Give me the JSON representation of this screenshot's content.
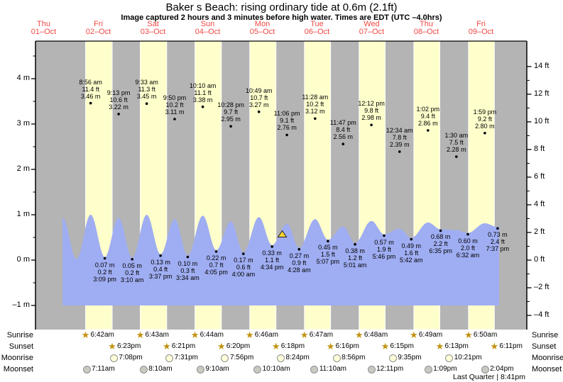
{
  "title": "Baker s Beach: rising  ordinary tide at 0.6m (2.1ft)",
  "subtitle": "Image captured 2 hours and 3 minutes before high water. Times are EDT (UTC –4.0hrs)",
  "colors": {
    "day_band": "#ffffcc",
    "night_band": "#b4b4b4",
    "tide_fill": "#9fadf2",
    "date_red": "#f04843",
    "marker_yellow": "#ffd633",
    "sun_star": "#c2920e",
    "moonrise_fill": "#ffffd9",
    "moonset_fill": "#c9c9c2"
  },
  "days": [
    {
      "name": "Thu",
      "date": "01–Oct"
    },
    {
      "name": "Fri",
      "date": "02–Oct"
    },
    {
      "name": "Sat",
      "date": "03–Oct"
    },
    {
      "name": "Sun",
      "date": "04–Oct"
    },
    {
      "name": "Mon",
      "date": "05–Oct"
    },
    {
      "name": "Tue",
      "date": "06–Oct"
    },
    {
      "name": "Wed",
      "date": "07–Oct"
    },
    {
      "name": "Thu",
      "date": "08–Oct"
    },
    {
      "name": "Fri",
      "date": "09–Oct"
    }
  ],
  "chart_data": {
    "type": "area",
    "title": "Baker s Beach: rising  ordinary tide at 0.6m (2.1ft)",
    "x_axis": {
      "label": "date",
      "days_shown": [
        "01-Oct",
        "02-Oct",
        "03-Oct",
        "04-Oct",
        "05-Oct",
        "06-Oct",
        "07-Oct",
        "08-Oct",
        "09-Oct"
      ]
    },
    "y_axis_left": {
      "unit": "m",
      "ticks": [
        {
          "v": 4,
          "label": "4 m"
        },
        {
          "v": 3,
          "label": "3 m"
        },
        {
          "v": 2,
          "label": "2 m"
        },
        {
          "v": 1,
          "label": "1 m"
        },
        {
          "v": 0,
          "label": "0 m"
        },
        {
          "v": -1,
          "label": "–1 m"
        }
      ]
    },
    "y_axis_right": {
      "unit": "ft",
      "ticks": [
        {
          "v": 14,
          "label": "14 ft"
        },
        {
          "v": 12,
          "label": "12 ft"
        },
        {
          "v": 10,
          "label": "10 ft"
        },
        {
          "v": 8,
          "label": "8 ft"
        },
        {
          "v": 6,
          "label": "6 ft"
        },
        {
          "v": 4,
          "label": "4 ft"
        },
        {
          "v": 2,
          "label": "2 ft"
        },
        {
          "v": 0,
          "label": "0 ft"
        },
        {
          "v": -2,
          "label": "–2 ft"
        },
        {
          "v": -4,
          "label": "–4 ft"
        }
      ]
    },
    "high_tides": [
      {
        "date": "02-Oct",
        "time": "8:56 am",
        "ft": "11.4 ft",
        "m": "3.46 m",
        "value_m": 3.46
      },
      {
        "date": "02-Oct",
        "time": "9:13 pm",
        "ft": "10.6 ft",
        "m": "3.22 m",
        "value_m": 3.22
      },
      {
        "date": "03-Oct",
        "time": "9:33 am",
        "ft": "11.3 ft",
        "m": "3.45 m",
        "value_m": 3.45
      },
      {
        "date": "03-Oct",
        "time": "9:50 pm",
        "ft": "10.2 ft",
        "m": "3.11 m",
        "value_m": 3.11
      },
      {
        "date": "04-Oct",
        "time": "10:10 am",
        "ft": "11.1 ft",
        "m": "3.38 m",
        "value_m": 3.38
      },
      {
        "date": "04-Oct",
        "time": "10:28 pm",
        "ft": "9.7 ft",
        "m": "2.95 m",
        "value_m": 2.95
      },
      {
        "date": "05-Oct",
        "time": "10:49 am",
        "ft": "10.7 ft",
        "m": "3.27 m",
        "value_m": 3.27
      },
      {
        "date": "05-Oct",
        "time": "11:06 pm",
        "ft": "9.1 ft",
        "m": "2.76 m",
        "value_m": 2.76
      },
      {
        "date": "06-Oct",
        "time": "11:28 am",
        "ft": "10.2 ft",
        "m": "3.12 m",
        "value_m": 3.12
      },
      {
        "date": "06-Oct",
        "time": "11:47 pm",
        "ft": "8.4 ft",
        "m": "2.56 m",
        "value_m": 2.56
      },
      {
        "date": "07-Oct",
        "time": "12:12 pm",
        "ft": "9.8 ft",
        "m": "2.98 m",
        "value_m": 2.98
      },
      {
        "date": "08-Oct",
        "time": "12:34 am",
        "ft": "7.8 ft",
        "m": "2.39 m",
        "value_m": 2.39
      },
      {
        "date": "08-Oct",
        "time": "1:02 pm",
        "ft": "9.4 ft",
        "m": "2.86 m",
        "value_m": 2.86
      },
      {
        "date": "09-Oct",
        "time": "1:30 am",
        "ft": "7.5 ft",
        "m": "2.28 m",
        "value_m": 2.28
      },
      {
        "date": "09-Oct",
        "time": "1:59 pm",
        "ft": "9.2 ft",
        "m": "2.80 m",
        "value_m": 2.8
      }
    ],
    "low_tides": [
      {
        "date": "02-Oct",
        "time": "3:09 pm",
        "ft": "0.2 ft",
        "m": "0.07 m",
        "value_m": 0.07
      },
      {
        "date": "03-Oct",
        "time": "3:10 am",
        "ft": "0.2 ft",
        "m": "0.05 m",
        "value_m": 0.05
      },
      {
        "date": "03-Oct",
        "time": "3:37 pm",
        "ft": "0.4 ft",
        "m": "0.13 m",
        "value_m": 0.13
      },
      {
        "date": "04-Oct",
        "time": "3:34 am",
        "ft": "0.3 ft",
        "m": "0.10 m",
        "value_m": 0.1
      },
      {
        "date": "04-Oct",
        "time": "4:05 pm",
        "ft": "0.7 ft",
        "m": "0.22 m",
        "value_m": 0.22
      },
      {
        "date": "05-Oct",
        "time": "4:00 am",
        "ft": "0.6 ft",
        "m": "0.17 m",
        "value_m": 0.17
      },
      {
        "date": "05-Oct",
        "time": "4:34 pm",
        "ft": "1.1 ft",
        "m": "0.33 m",
        "value_m": 0.33
      },
      {
        "date": "06-Oct",
        "time": "4:28 am",
        "ft": "0.9 ft",
        "m": "0.27 m",
        "value_m": 0.27
      },
      {
        "date": "06-Oct",
        "time": "5:07 pm",
        "ft": "1.5 ft",
        "m": "0.45 m",
        "value_m": 0.45
      },
      {
        "date": "07-Oct",
        "time": "5:01 am",
        "ft": "1.2 ft",
        "m": "0.38 m",
        "value_m": 0.38
      },
      {
        "date": "07-Oct",
        "time": "5:46 pm",
        "ft": "1.9 ft",
        "m": "0.57 m",
        "value_m": 0.57
      },
      {
        "date": "08-Oct",
        "time": "5:42 am",
        "ft": "1.6 ft",
        "m": "0.49 m",
        "value_m": 0.49
      },
      {
        "date": "08-Oct",
        "time": "6:35 pm",
        "ft": "2.2 ft",
        "m": "0.68 m",
        "value_m": 0.68
      },
      {
        "date": "09-Oct",
        "time": "6:32 am",
        "ft": "2.0 ft",
        "m": "0.60 m",
        "value_m": 0.6
      },
      {
        "date": "09-Oct",
        "time": "7:37 pm",
        "ft": "2.4 ft",
        "m": "0.73 m",
        "value_m": 0.73
      }
    ],
    "now_marker": {
      "relative_to_high_time": "11:06 pm",
      "relative_to_high_date": "05-Oct",
      "offset_hours": -2.05
    }
  },
  "astro": {
    "rows": [
      {
        "label": "Sunrise",
        "icon": "sun-star",
        "entries": [
          {
            "date": "02-Oct",
            "time": "6:42am"
          },
          {
            "date": "03-Oct",
            "time": "6:43am"
          },
          {
            "date": "04-Oct",
            "time": "6:44am"
          },
          {
            "date": "05-Oct",
            "time": "6:46am"
          },
          {
            "date": "06-Oct",
            "time": "6:47am"
          },
          {
            "date": "07-Oct",
            "time": "6:48am"
          },
          {
            "date": "08-Oct",
            "time": "6:49am"
          },
          {
            "date": "09-Oct",
            "time": "6:50am"
          }
        ]
      },
      {
        "label": "Sunset",
        "icon": "sun-star",
        "entries": [
          {
            "date": "02-Oct",
            "time": "6:23pm"
          },
          {
            "date": "03-Oct",
            "time": "6:21pm"
          },
          {
            "date": "04-Oct",
            "time": "6:20pm"
          },
          {
            "date": "05-Oct",
            "time": "6:18pm"
          },
          {
            "date": "06-Oct",
            "time": "6:16pm"
          },
          {
            "date": "07-Oct",
            "time": "6:15pm"
          },
          {
            "date": "08-Oct",
            "time": "6:13pm"
          },
          {
            "date": "09-Oct",
            "time": "6:11pm"
          }
        ]
      },
      {
        "label": "Moonrise",
        "icon": "moonrise-circle",
        "entries": [
          {
            "date": "02-Oct",
            "time": "7:08pm"
          },
          {
            "date": "03-Oct",
            "time": "7:31pm"
          },
          {
            "date": "04-Oct",
            "time": "7:56pm"
          },
          {
            "date": "05-Oct",
            "time": "8:24pm"
          },
          {
            "date": "06-Oct",
            "time": "8:56pm"
          },
          {
            "date": "07-Oct",
            "time": "9:35pm"
          },
          {
            "date": "08-Oct",
            "time": "10:21pm"
          }
        ]
      },
      {
        "label": "Moonset",
        "icon": "moonset-circle",
        "entries": [
          {
            "date": "02-Oct",
            "time": "7:11am"
          },
          {
            "date": "03-Oct",
            "time": "8:10am"
          },
          {
            "date": "04-Oct",
            "time": "9:10am"
          },
          {
            "date": "05-Oct",
            "time": "10:10am"
          },
          {
            "date": "06-Oct",
            "time": "11:10am"
          },
          {
            "date": "07-Oct",
            "time": "12:11pm"
          },
          {
            "date": "08-Oct",
            "time": "1:09pm"
          },
          {
            "date": "09-Oct",
            "time": "2:04pm"
          }
        ]
      }
    ],
    "footnote": "Last Quarter | 8:41pm"
  }
}
